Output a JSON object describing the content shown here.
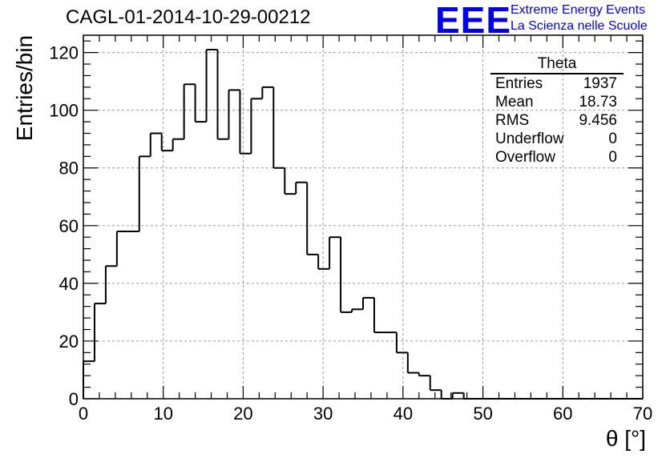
{
  "chart_data": {
    "type": "histogram",
    "title": "CAGL-01-2014-10-29-00212",
    "xlabel": "θ [°]",
    "ylabel": "Entries/bin",
    "xlim": [
      0,
      70
    ],
    "ylim": [
      0,
      126
    ],
    "grid": true,
    "bin_width": 1.4,
    "bin_start": 0,
    "values": [
      13,
      33,
      46,
      58,
      58,
      84,
      92,
      86,
      90,
      109,
      96,
      121,
      90,
      107,
      85,
      104,
      108,
      80,
      71,
      75,
      50,
      45,
      56,
      30,
      31,
      35,
      23,
      23,
      16,
      9,
      8,
      3,
      0,
      2,
      0,
      0,
      0,
      0,
      0,
      0,
      0,
      0,
      0,
      0,
      0,
      0,
      0,
      0,
      0,
      0
    ],
    "x_ticks": [
      "0",
      "10",
      "20",
      "30",
      "40",
      "50",
      "60",
      "70"
    ],
    "y_ticks": [
      "0",
      "20",
      "40",
      "60",
      "80",
      "100",
      "120"
    ],
    "x_tick_values": [
      0,
      10,
      20,
      30,
      40,
      50,
      60,
      70
    ],
    "y_tick_values": [
      0,
      20,
      40,
      60,
      80,
      100,
      120
    ]
  },
  "logo": {
    "mark": "EEE",
    "line1": "Extreme Energy Events",
    "line2": "La Scienza nelle Scuole"
  },
  "stats": {
    "title": "Theta",
    "rows": [
      {
        "label": "Entries",
        "value": "1937"
      },
      {
        "label": "Mean",
        "value": "18.73"
      },
      {
        "label": "RMS",
        "value": "9.456"
      },
      {
        "label": "Underflow",
        "value": "0"
      },
      {
        "label": "Overflow",
        "value": "0"
      }
    ]
  }
}
